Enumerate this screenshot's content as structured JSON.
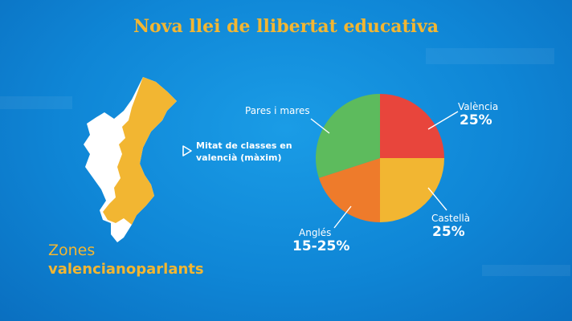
{
  "title": "Nova llei de llibertat educativa",
  "map": {
    "legend_line1": "Zones",
    "legend_line2": "valencianoparlants",
    "note_line1": "Mitat de classes en",
    "note_line2": "valencià (màxim)",
    "colors": {
      "land": "#ffffff",
      "highlight": "#f2b632"
    }
  },
  "chart_data": {
    "type": "pie",
    "slices": [
      {
        "label": "València",
        "value": 25,
        "value_label": "25%",
        "color": "#e8453c"
      },
      {
        "label": "Castellà",
        "value": 25,
        "value_label": "25%",
        "color": "#f2b632"
      },
      {
        "label": "Anglés",
        "value": 20,
        "value_label": "15-25%",
        "color": "#ee7b2b"
      },
      {
        "label": "Pares i mares",
        "value": 30,
        "value_label": "",
        "color": "#5dbb5d"
      }
    ]
  }
}
